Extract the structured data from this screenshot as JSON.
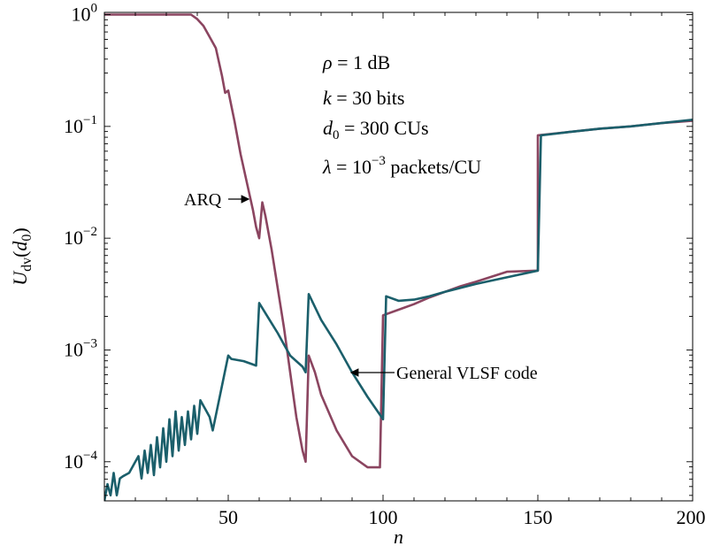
{
  "chart_data": {
    "type": "line",
    "xlabel": "n",
    "ylabel": {
      "main": "U",
      "sub": "dv",
      "arg": "(d",
      "arg_sub": "0",
      "close": ")"
    },
    "xlim": [
      10,
      200
    ],
    "ylim_log10": [
      -4.35,
      0.02
    ],
    "y_scale": "log",
    "grid": false,
    "x_ticks": [
      {
        "value": 50,
        "label": "50"
      },
      {
        "value": 100,
        "label": "100"
      },
      {
        "value": 150,
        "label": "150"
      },
      {
        "value": 200,
        "label": "200"
      }
    ],
    "y_ticks": [
      {
        "exp": 0,
        "base": "10",
        "sup": "0"
      },
      {
        "exp": -1,
        "base": "10",
        "sup": "−1"
      },
      {
        "exp": -2,
        "base": "10",
        "sup": "−2"
      },
      {
        "exp": -3,
        "base": "10",
        "sup": "−3"
      },
      {
        "exp": -4,
        "base": "10",
        "sup": "−4"
      }
    ],
    "params": [
      {
        "sym": "ρ",
        "eq": " = 1 dB"
      },
      {
        "sym": "k",
        "eq": " = 30 bits"
      },
      {
        "sym": "d",
        "sub": "0",
        "eq": " = 300 CUs"
      },
      {
        "sym": "λ",
        "eq": " = 10",
        "sup": "−3",
        "tail": " packets/CU"
      }
    ],
    "annotations": [
      {
        "text": "ARQ",
        "series": 0
      },
      {
        "text": "General VLSF code",
        "series": 1
      }
    ],
    "colors": {
      "arq": "#8b4560",
      "vlsf": "#1b5f6b"
    },
    "series": [
      {
        "id": "arq",
        "x": [
          10,
          20,
          30,
          38,
          40,
          42,
          44,
          46,
          48,
          49,
          50,
          52,
          54,
          56,
          58,
          59,
          60,
          61,
          62,
          64,
          66,
          68,
          70,
          72,
          74,
          75,
          76,
          78,
          80,
          85,
          90,
          95,
          99,
          100,
          105,
          110,
          115,
          120,
          125,
          130,
          140,
          150,
          150,
          160,
          170,
          180,
          190,
          200
        ],
        "log10y": [
          0,
          0,
          0,
          0,
          -0.04,
          -0.1,
          -0.2,
          -0.3,
          -0.55,
          -0.7,
          -0.68,
          -0.95,
          -1.25,
          -1.5,
          -1.75,
          -1.9,
          -2.0,
          -1.68,
          -1.8,
          -2.1,
          -2.45,
          -2.8,
          -3.2,
          -3.6,
          -3.9,
          -4.0,
          -3.05,
          -3.2,
          -3.4,
          -3.72,
          -3.95,
          -4.05,
          -4.05,
          -2.69,
          -2.64,
          -2.59,
          -2.53,
          -2.48,
          -2.43,
          -2.39,
          -2.3,
          -2.29,
          -1.08,
          -1.05,
          -1.02,
          -1.0,
          -0.97,
          -0.95
        ]
      },
      {
        "id": "vlsf",
        "x": [
          10,
          11,
          12,
          13,
          14,
          15,
          16,
          18,
          20,
          21,
          22,
          23,
          24,
          25,
          26,
          27,
          28,
          29,
          30,
          31,
          32,
          33,
          34,
          35,
          36,
          37,
          38,
          39,
          40,
          41,
          42,
          43,
          44,
          45,
          50,
          51,
          55,
          58,
          59,
          60,
          62,
          64,
          66,
          68,
          70,
          72,
          74,
          75,
          76,
          80,
          85,
          90,
          95,
          100,
          101,
          105,
          110,
          115,
          120,
          130,
          140,
          150,
          151,
          160,
          170,
          180,
          190,
          200
        ],
        "log10y": [
          -4.35,
          -4.2,
          -4.3,
          -4.1,
          -4.3,
          -4.15,
          -4.13,
          -4.1,
          -4.0,
          -3.95,
          -4.15,
          -3.9,
          -4.1,
          -3.85,
          -4.12,
          -3.78,
          -4.05,
          -3.7,
          -4.0,
          -3.62,
          -3.95,
          -3.55,
          -3.9,
          -3.6,
          -3.85,
          -3.55,
          -3.8,
          -3.5,
          -3.75,
          -3.45,
          -3.5,
          -3.55,
          -3.6,
          -3.72,
          -3.05,
          -3.08,
          -3.1,
          -3.13,
          -3.14,
          -2.58,
          -2.67,
          -2.76,
          -2.85,
          -2.95,
          -3.05,
          -3.1,
          -3.15,
          -3.2,
          -2.5,
          -2.73,
          -2.95,
          -3.2,
          -3.42,
          -3.62,
          -2.52,
          -2.56,
          -2.55,
          -2.52,
          -2.48,
          -2.41,
          -2.35,
          -2.29,
          -1.08,
          -1.05,
          -1.02,
          -1.0,
          -0.97,
          -0.94
        ]
      }
    ]
  }
}
